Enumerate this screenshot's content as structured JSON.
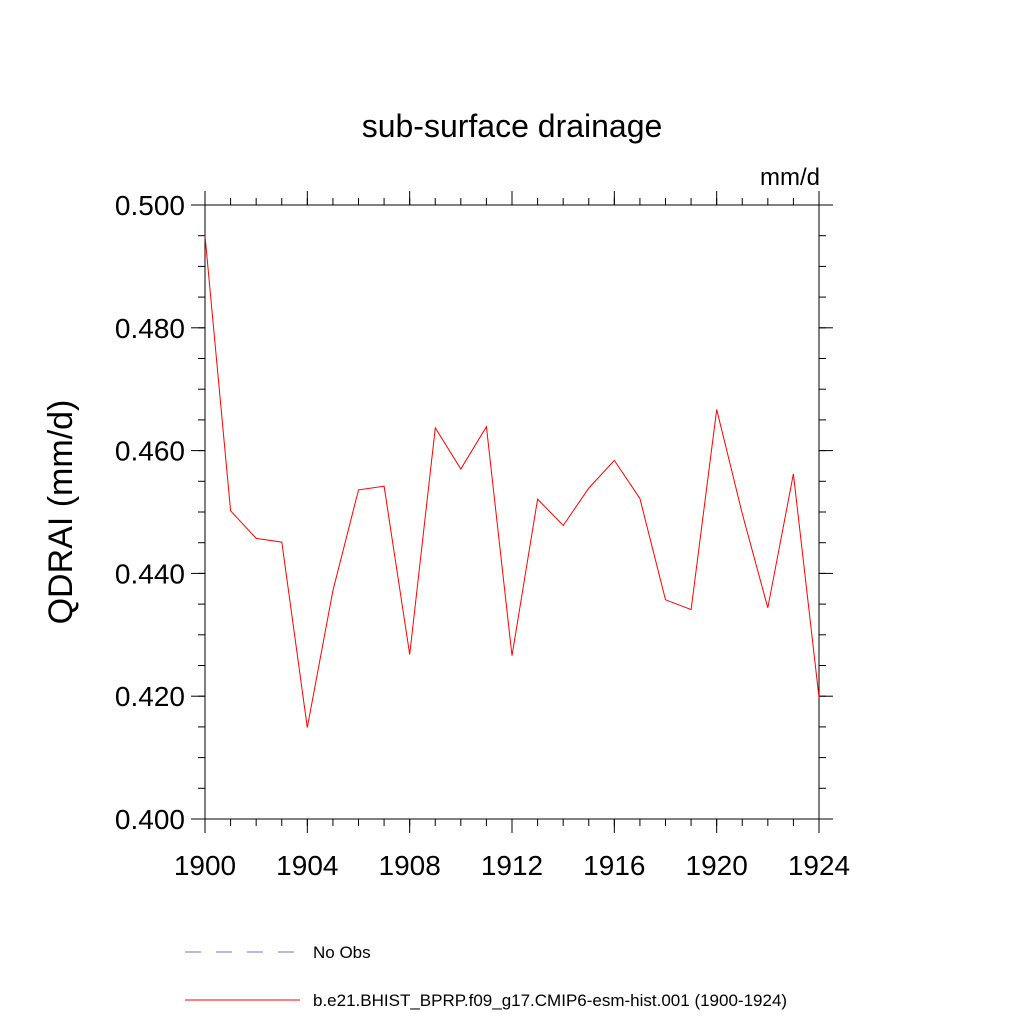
{
  "chart_data": {
    "type": "line",
    "title": "sub-surface drainage",
    "units_label": "mm/d",
    "ylabel": "QDRAI  (mm/d)",
    "xlabel": "",
    "xlim": [
      1900,
      1924
    ],
    "ylim": [
      0.4,
      0.5
    ],
    "x_ticks": [
      "1900",
      "1904",
      "1908",
      "1912",
      "1916",
      "1920",
      "1924"
    ],
    "y_ticks": [
      "0.400",
      "0.420",
      "0.440",
      "0.460",
      "0.480",
      "0.500"
    ],
    "grid": false,
    "legend_position": "bottom",
    "series": [
      {
        "name": "b.e21.BHIST_BPRP.f09_g17.CMIP6-esm-hist.001 (1900-1924)",
        "color": "#ff0000",
        "style": "solid",
        "x": [
          1900,
          1901,
          1902,
          1903,
          1904,
          1905,
          1906,
          1907,
          1908,
          1909,
          1910,
          1911,
          1912,
          1913,
          1914,
          1915,
          1916,
          1917,
          1918,
          1919,
          1920,
          1921,
          1922,
          1923,
          1924
        ],
        "values": [
          0.495,
          0.4502,
          0.4457,
          0.4451,
          0.4149,
          0.4372,
          0.4536,
          0.4542,
          0.4268,
          0.4637,
          0.457,
          0.4639,
          0.4266,
          0.4521,
          0.4478,
          0.4539,
          0.4584,
          0.4522,
          0.4357,
          0.4341,
          0.4667,
          0.4497,
          0.4344,
          0.4562,
          0.4198
        ]
      }
    ],
    "legend": [
      {
        "label": "No Obs",
        "color": "#7a6fd0",
        "style": "dashed"
      },
      {
        "label": "b.e21.BHIST_BPRP.f09_g17.CMIP6-esm-hist.001 (1900-1924)",
        "color": "#ff0000",
        "style": "solid"
      }
    ]
  }
}
